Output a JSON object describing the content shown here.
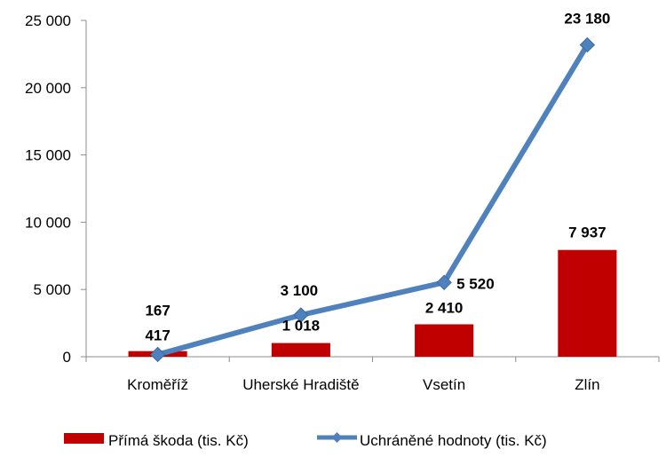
{
  "chart_data": {
    "type": "bar",
    "categories": [
      "Kroměříž",
      "Uherské Hradiště",
      "Vsetín",
      "Zlín"
    ],
    "series": [
      {
        "name": "Přímá škoda (tis. Kč)",
        "kind": "bar",
        "color": "#C00000",
        "values": [
          417,
          1018,
          2410,
          7937
        ],
        "labels": [
          "417",
          "1 018",
          "2 410",
          "7 937"
        ]
      },
      {
        "name": "Uchráněné hodnoty (tis. Kč)",
        "kind": "line",
        "color": "#4F81BD",
        "marker": "diamond",
        "values": [
          167,
          3100,
          5520,
          23180
        ],
        "labels": [
          "167",
          "3 100",
          "5 520",
          "23 180"
        ]
      }
    ],
    "y_ticks": [
      "0",
      "5 000",
      "10 000",
      "15 000",
      "20 000",
      "25 000"
    ],
    "ylim": [
      0,
      25000
    ],
    "grid": false,
    "legend_position": "bottom"
  }
}
